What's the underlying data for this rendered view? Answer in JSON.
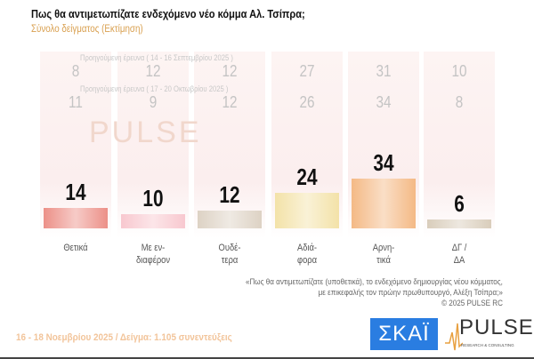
{
  "header": {
    "title": "Πως θα αντιμετωπίζατε ενδεχόμενο νέο κόμμα Αλ. Τσίπρα;",
    "subtitle": "Σύνολο δείγματος   (Εκτίμηση)"
  },
  "chart_data": {
    "type": "bar",
    "categories": [
      "Θετικά",
      "Με εν-\nδιαφέρον",
      "Ουδέ-\nτερα",
      "Αδιά-\nφορα",
      "Αρνη-\nτικά",
      "ΔΓ /\nΔΑ"
    ],
    "values": [
      14,
      10,
      12,
      24,
      34,
      6
    ],
    "colors": [
      "#ec9088",
      "#f8c8cf",
      "#ddd2c4",
      "#f3e2a8",
      "#f4b985",
      "#d9cdbb"
    ],
    "previous": [
      {
        "label": "Προηγούμενη έρευνα ( 14 - 16 Σεπτεμβρίου 2025 )",
        "values": [
          8,
          12,
          12,
          27,
          31,
          10
        ]
      },
      {
        "label": "Προηγούμενη έρευνα ( 17 - 20 Οκτωβρίου 2025 )",
        "values": [
          11,
          9,
          12,
          26,
          34,
          8
        ]
      }
    ]
  },
  "note": {
    "line1": "«Πως θα αντιμετωπίζατε (υποθετικά), το ενδεχόμενο δημιουργίας νέου κόμματος,",
    "line2": "με επικεφαλής τον πρώην πρωθυπουργό, Αλέξη Τσίπρα;»",
    "line3": "©  2025  PULSE RC"
  },
  "footer": {
    "text": "16 - 18 Νοεμβρίου 2025  /  Δείγμα:  1.105 συνεντεύξεις"
  },
  "logos": {
    "skai": "ΣΚΑΪ",
    "pulse": "PULSE",
    "pulse_sub": "RESEARCH & CONSULTING"
  }
}
